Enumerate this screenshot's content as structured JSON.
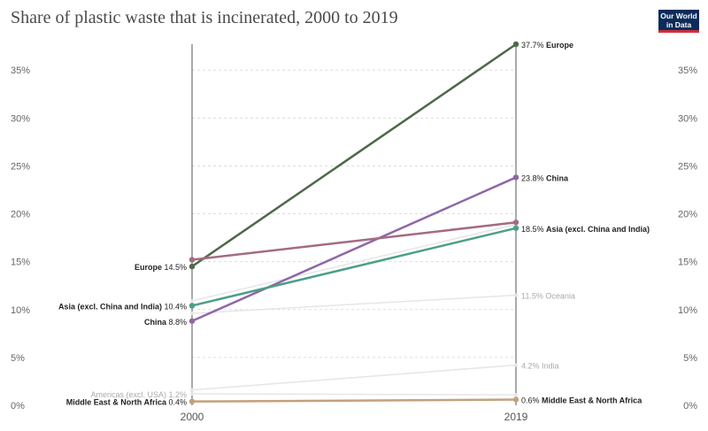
{
  "title": "Share of plastic waste that is incinerated, 2000 to 2019",
  "logo": {
    "line1": "Our World",
    "line2": "in Data",
    "bg_color": "#0c2b5a",
    "accent_color": "#ce2e3c"
  },
  "chart_data": {
    "type": "line",
    "title": "Share of plastic waste that is incinerated, 2000 to 2019",
    "x": [
      "2000",
      "2019"
    ],
    "ylim": [
      0,
      37.7
    ],
    "yticks": [
      "0%",
      "5%",
      "10%",
      "15%",
      "20%",
      "25%",
      "30%",
      "35%"
    ],
    "grid": true,
    "series": [
      {
        "name": "Europe",
        "values": [
          14.5,
          37.7
        ],
        "color": "#4c6a47",
        "highlighted": true,
        "start_label": "14.5%",
        "end_label": "37.7%"
      },
      {
        "name": "China",
        "values": [
          8.8,
          23.8
        ],
        "color": "#8e67a8",
        "highlighted": true,
        "start_label": "8.8%",
        "end_label": "23.8%"
      },
      {
        "name": "",
        "values": [
          15.2,
          19.1
        ],
        "color": "#a46b83",
        "highlighted": true
      },
      {
        "name": "Asia (excl. China and India)",
        "values": [
          10.4,
          18.5
        ],
        "color": "#4c9f88",
        "highlighted": true,
        "start_label": "10.4%",
        "end_label": "18.5%"
      },
      {
        "name": "",
        "values": [
          10.9,
          18.9
        ],
        "color": "#e6e6e6",
        "highlighted": false
      },
      {
        "name": "",
        "values": [
          9.6,
          11.5
        ],
        "color": "#e6e6e6",
        "highlighted": false
      },
      {
        "name": "Oceania",
        "values": [
          null,
          11.5
        ],
        "color": "#e6e6e6",
        "highlighted": false,
        "end_label": "11.5%"
      },
      {
        "name": "India",
        "values": [
          1.6,
          4.2
        ],
        "color": "#e6e6e6",
        "highlighted": false,
        "end_label": "4.2%"
      },
      {
        "name": "Americas (excl. USA)",
        "values": [
          1.2,
          1.1
        ],
        "color": "#e6e6e6",
        "highlighted": false,
        "start_label": "1.2%"
      },
      {
        "name": "Middle East & North Africa",
        "values": [
          0.4,
          0.6
        ],
        "color": "#c4a07c",
        "highlighted": true,
        "start_label": "0.4%",
        "end_label": "0.6%"
      }
    ]
  }
}
